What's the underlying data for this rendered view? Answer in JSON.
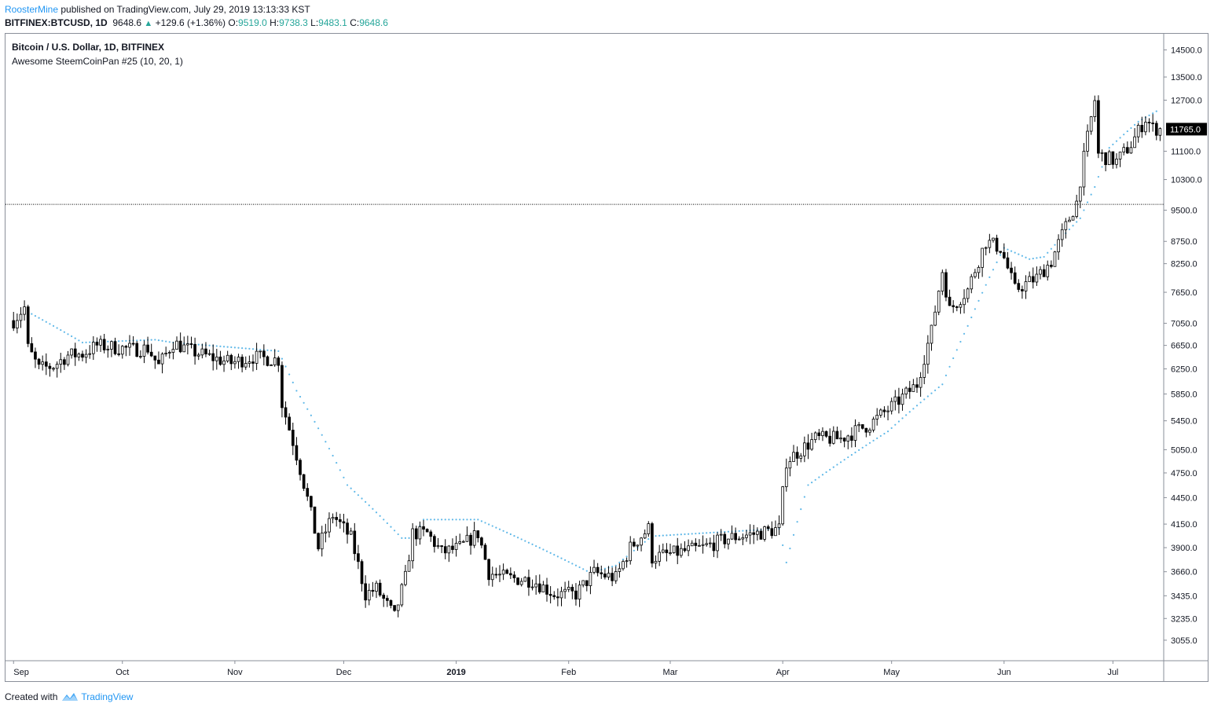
{
  "header": {
    "author": "RoosterMine",
    "published": "published on TradingView.com, July 29, 2019 13:13:33 KST"
  },
  "quote": {
    "symbol": "BITFINEX:BTCUSD, 1D",
    "last": "9648.6",
    "change": "+129.6 (+1.36%)",
    "o_label": "O:",
    "o": "9519.0",
    "h_label": "H:",
    "h": "9738.3",
    "l_label": "L:",
    "l": "9483.1",
    "c_label": "C:",
    "c": "9648.6"
  },
  "legend": {
    "title": "Bitcoin / U.S. Dollar, 1D, BITFINEX",
    "indicator": "Awesome SteemCoinPan #25 (10, 20, 1)"
  },
  "footer": {
    "created": "Created with",
    "brand": "TradingView"
  },
  "colors": {
    "candle": "#000000",
    "dots": "#5fb8e8",
    "price_line": "#000000",
    "price_label_bg": "#000000",
    "axis_text": "#131722",
    "brand": "#2196f3",
    "up": "#26a69a"
  },
  "chart_data": {
    "type": "candlestick",
    "title": "Bitcoin / U.S. Dollar, 1D, BITFINEX",
    "x_tick_labels": [
      "Sep",
      "Oct",
      "Nov",
      "Dec",
      "2019",
      "Feb",
      "Mar",
      "Apr",
      "May",
      "Jun",
      "Jul"
    ],
    "y_tick_labels": [
      3055,
      3235,
      3435,
      3660,
      3900,
      4150,
      4450,
      4750,
      5050,
      5450,
      5850,
      6250,
      6650,
      7050,
      7650,
      8250,
      8750,
      9500,
      10300,
      11100,
      12700,
      13500,
      14500
    ],
    "y_scale": "log",
    "ylim": [
      2900,
      15100
    ],
    "last_price_label": "11765.0",
    "horizontal_line": 9648.6,
    "series_close": [
      [
        "2018-09-01",
        7100
      ],
      [
        "2018-09-04",
        7350
      ],
      [
        "2018-09-05",
        6600
      ],
      [
        "2018-09-08",
        6250
      ],
      [
        "2018-09-12",
        6300
      ],
      [
        "2018-09-16",
        6480
      ],
      [
        "2018-09-20",
        6500
      ],
      [
        "2018-09-24",
        6650
      ],
      [
        "2018-09-28",
        6620
      ],
      [
        "2018-10-04",
        6580
      ],
      [
        "2018-10-08",
        6600
      ],
      [
        "2018-10-11",
        6300
      ],
      [
        "2018-10-15",
        6700
      ],
      [
        "2018-10-20",
        6550
      ],
      [
        "2018-10-25",
        6450
      ],
      [
        "2018-10-31",
        6350
      ],
      [
        "2018-11-06",
        6450
      ],
      [
        "2018-11-13",
        6400
      ],
      [
        "2018-11-14",
        5700
      ],
      [
        "2018-11-19",
        4800
      ],
      [
        "2018-11-24",
        3900
      ],
      [
        "2018-11-28",
        4250
      ],
      [
        "2018-12-03",
        4000
      ],
      [
        "2018-12-07",
        3450
      ],
      [
        "2018-12-10",
        3500
      ],
      [
        "2018-12-15",
        3250
      ],
      [
        "2018-12-18",
        3600
      ],
      [
        "2018-12-20",
        4050
      ],
      [
        "2018-12-24",
        4050
      ],
      [
        "2018-12-28",
        3850
      ],
      [
        "2019-01-02",
        3900
      ],
      [
        "2019-01-07",
        4050
      ],
      [
        "2019-01-10",
        3650
      ],
      [
        "2019-01-15",
        3600
      ],
      [
        "2019-01-22",
        3580
      ],
      [
        "2019-01-28",
        3450
      ],
      [
        "2019-02-03",
        3450
      ],
      [
        "2019-02-08",
        3650
      ],
      [
        "2019-02-14",
        3600
      ],
      [
        "2019-02-18",
        3900
      ],
      [
        "2019-02-23",
        4100
      ],
      [
        "2019-02-24",
        3800
      ],
      [
        "2019-03-03",
        3850
      ],
      [
        "2019-03-10",
        3900
      ],
      [
        "2019-03-17",
        4000
      ],
      [
        "2019-03-25",
        4050
      ],
      [
        "2019-03-31",
        4100
      ],
      [
        "2019-04-02",
        4900
      ],
      [
        "2019-04-10",
        5200
      ],
      [
        "2019-04-17",
        5200
      ],
      [
        "2019-04-25",
        5400
      ],
      [
        "2019-05-02",
        5700
      ],
      [
        "2019-05-08",
        6000
      ],
      [
        "2019-05-12",
        6900
      ],
      [
        "2019-05-15",
        8100
      ],
      [
        "2019-05-17",
        7300
      ],
      [
        "2019-05-22",
        7700
      ],
      [
        "2019-05-27",
        8750
      ],
      [
        "2019-05-31",
        8600
      ],
      [
        "2019-06-04",
        7700
      ],
      [
        "2019-06-10",
        7950
      ],
      [
        "2019-06-14",
        8300
      ],
      [
        "2019-06-18",
        9100
      ],
      [
        "2019-06-21",
        9700
      ],
      [
        "2019-06-26",
        12700
      ],
      [
        "2019-06-27",
        11000
      ],
      [
        "2019-07-02",
        10800
      ],
      [
        "2019-07-06",
        11300
      ],
      [
        "2019-07-10",
        12100
      ],
      [
        "2019-07-12",
        11800
      ],
      [
        "2019-07-14",
        11765
      ]
    ],
    "indicator": {
      "name": "Awesome SteemCoinPan #25 (10, 20, 1)",
      "style": "dots",
      "points": [
        [
          "2018-09-04",
          7300
        ],
        [
          "2018-09-20",
          6700
        ],
        [
          "2018-10-10",
          6750
        ],
        [
          "2018-10-15",
          6700
        ],
        [
          "2018-11-13",
          6550
        ],
        [
          "2018-11-18",
          5900
        ],
        [
          "2018-12-02",
          4600
        ],
        [
          "2018-12-17",
          4000
        ],
        [
          "2018-12-20",
          4000
        ],
        [
          "2018-12-23",
          4200
        ],
        [
          "2019-01-07",
          4200
        ],
        [
          "2019-02-07",
          3650
        ],
        [
          "2019-02-14",
          3720
        ],
        [
          "2019-02-24",
          4020
        ],
        [
          "2019-03-31",
          4100
        ],
        [
          "2019-04-02",
          3750
        ],
        [
          "2019-04-08",
          4600
        ],
        [
          "2019-04-30",
          5300
        ],
        [
          "2019-05-15",
          6000
        ],
        [
          "2019-05-22",
          7000
        ],
        [
          "2019-06-01",
          8600
        ],
        [
          "2019-06-08",
          8350
        ],
        [
          "2019-06-12",
          8400
        ],
        [
          "2019-06-22",
          9300
        ],
        [
          "2019-06-26",
          10100
        ],
        [
          "2019-06-30",
          11200
        ],
        [
          "2019-07-08",
          12000
        ],
        [
          "2019-07-14",
          12400
        ]
      ]
    }
  }
}
